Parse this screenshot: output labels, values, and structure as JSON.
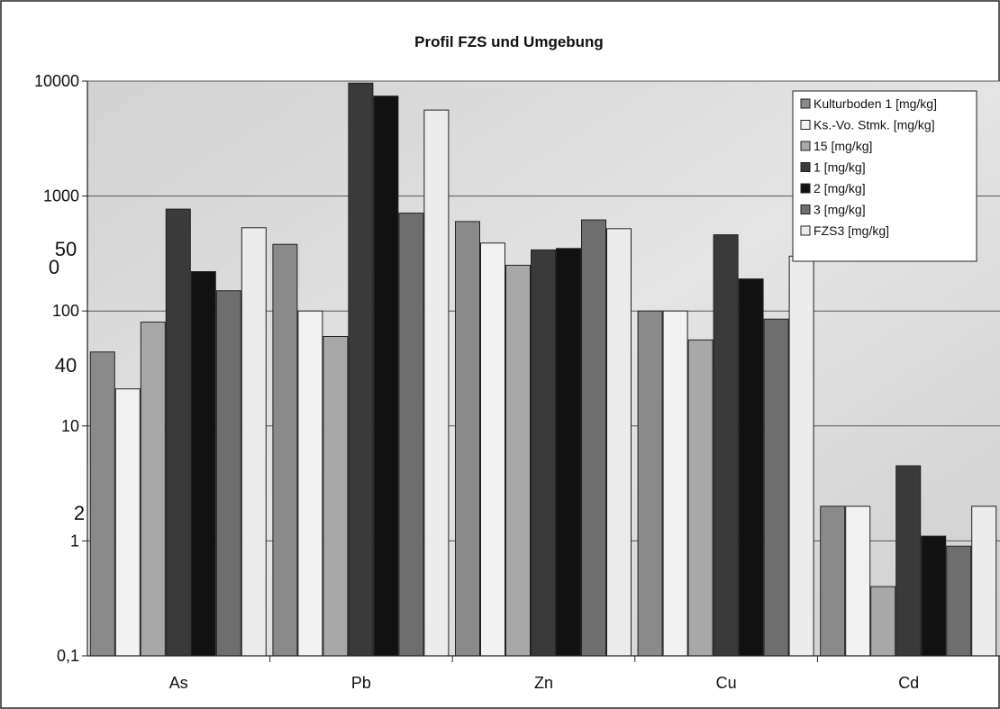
{
  "chart_data": {
    "type": "bar",
    "title": "Profil FZS und Umgebung",
    "xlabel": "",
    "ylabel": "",
    "y_scale": "log",
    "ylim": [
      0.1,
      10000
    ],
    "y_ticks": [
      0.1,
      1,
      10,
      100,
      1000,
      10000
    ],
    "y_tick_labels": [
      "0,1",
      "1",
      "10",
      "100",
      "1000",
      "10000"
    ],
    "grid": true,
    "legend_position": "top-right",
    "stray_labels": [
      "2",
      "40",
      "50",
      "0"
    ],
    "categories": [
      "As",
      "Pb",
      "Zn",
      "Cu",
      "Cd"
    ],
    "series": [
      {
        "name": "Kulturboden 1 [mg/kg]",
        "color": "#8a8a8a",
        "values": [
          44,
          380,
          600,
          100,
          2
        ]
      },
      {
        "name": "Ks.-Vo. Stmk. [mg/kg]",
        "color": "#f2f2f2",
        "values": [
          21,
          100,
          390,
          100,
          2
        ]
      },
      {
        "name": "15 [mg/kg]",
        "color": "#a8a8a8",
        "values": [
          80,
          60,
          250,
          56,
          0.4
        ]
      },
      {
        "name": "1 [mg/kg]",
        "color": "#3a3a3a",
        "values": [
          770,
          9600,
          340,
          460,
          4.5
        ]
      },
      {
        "name": "2 [mg/kg]",
        "color": "#111111",
        "values": [
          220,
          7400,
          350,
          190,
          1.1
        ]
      },
      {
        "name": "3 [mg/kg]",
        "color": "#6e6e6e",
        "values": [
          150,
          710,
          620,
          85,
          0.9
        ]
      },
      {
        "name": "FZS3 [mg/kg]",
        "color": "#ececec",
        "values": [
          530,
          5600,
          520,
          300,
          2
        ]
      }
    ]
  }
}
